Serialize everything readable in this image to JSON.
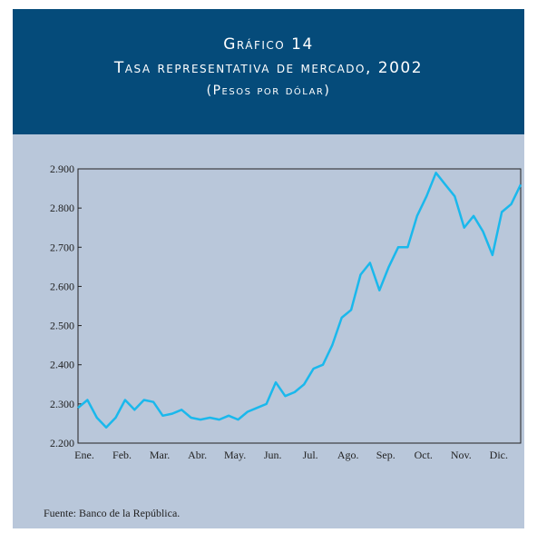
{
  "chart_data": {
    "type": "line",
    "title": "Gráfico 14",
    "subtitle": "Tasa representativa de mercado, 2002",
    "y_label": "(Pesos por dólar)",
    "source": "Fuente: Banco de la República.",
    "categories": [
      "Ene.",
      null,
      null,
      null,
      "Feb.",
      null,
      null,
      null,
      "Mar.",
      null,
      null,
      null,
      "Abr.",
      null,
      null,
      null,
      "May.",
      null,
      null,
      null,
      "Jun.",
      null,
      null,
      null,
      "Jul.",
      null,
      null,
      null,
      "Ago.",
      null,
      null,
      null,
      "Sep.",
      null,
      null,
      null,
      "Oct.",
      null,
      null,
      null,
      "Nov.",
      null,
      null,
      null,
      "Dic.",
      null,
      null,
      null
    ],
    "series": [
      {
        "color": "#1ab8ec",
        "values": [
          2290,
          2310,
          2265,
          2240,
          2265,
          2310,
          2285,
          2310,
          2305,
          2270,
          2275,
          2285,
          2265,
          2260,
          2265,
          2260,
          2270,
          2260,
          2280,
          2290,
          2300,
          2355,
          2320,
          2330,
          2350,
          2390,
          2400,
          2450,
          2520,
          2540,
          2630,
          2660,
          2590,
          2650,
          2700,
          2700,
          2780,
          2830,
          2890,
          2860,
          2830,
          2750,
          2780,
          2740,
          2680,
          2790,
          2810,
          2860
        ]
      }
    ],
    "ylim": [
      2200,
      2900
    ],
    "yticks": [
      {
        "value": 2200,
        "label": "2.200"
      },
      {
        "value": 2300,
        "label": "2.300"
      },
      {
        "value": 2400,
        "label": "2.400"
      },
      {
        "value": 2500,
        "label": "2.500"
      },
      {
        "value": 2600,
        "label": "2.600"
      },
      {
        "value": 2700,
        "label": "2.700"
      },
      {
        "value": 2800,
        "label": "2.800"
      },
      {
        "value": 2900,
        "label": "2.900"
      }
    ]
  }
}
